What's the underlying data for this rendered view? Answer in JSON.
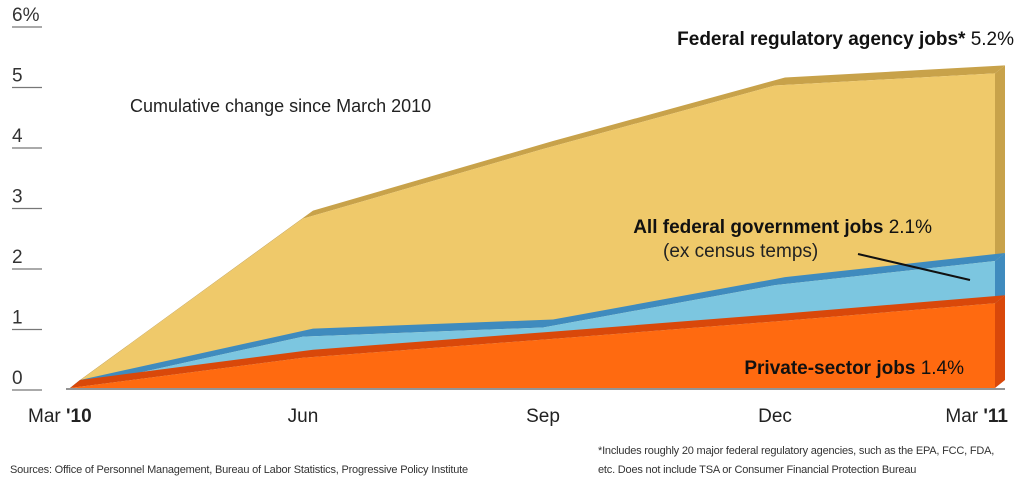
{
  "chart_data": {
    "type": "area",
    "subtitle": "Cumulative change since March 2010",
    "x": [
      "Mar '10",
      "Jun",
      "Sep",
      "Dec",
      "Mar '11"
    ],
    "x_tick_labels": [
      {
        "normal": "Mar ",
        "bold": "'10"
      },
      {
        "normal": "Jun",
        "bold": ""
      },
      {
        "normal": "Sep",
        "bold": ""
      },
      {
        "normal": "Dec",
        "bold": ""
      },
      {
        "normal": "Mar ",
        "bold": "'11"
      }
    ],
    "y_ticks": [
      "6%",
      "5",
      "4",
      "3",
      "2",
      "1",
      "0"
    ],
    "ylim": [
      0,
      6
    ],
    "series": [
      {
        "name": "Federal regulatory agency jobs*",
        "end_label": "5.2%",
        "values": [
          0,
          2.8,
          3.95,
          5.0,
          5.2
        ],
        "color": "#EFC96A",
        "edge_color": "#C8A24A"
      },
      {
        "name": "All federal government jobs",
        "end_label": "2.1%",
        "note": "(ex census temps)",
        "values": [
          0,
          0.85,
          1.0,
          1.7,
          2.1
        ],
        "color": "#7CC6E0",
        "edge_color": "#3F8BBE"
      },
      {
        "name": "Private-sector jobs",
        "end_label": "1.4%",
        "values": [
          0,
          0.5,
          0.8,
          1.1,
          1.4
        ],
        "color": "#FF6A10",
        "edge_color": "#D9480A"
      }
    ],
    "grid": false,
    "sources": "Sources: Office of Personnel Management, Bureau of Labor Statistics, Progressive Policy Institute",
    "footnote": "*Includes roughly 20 major federal regulatory agencies, such as the EPA, FCC, FDA, etc. Does not include TSA or Consumer Financial Protection Bureau"
  }
}
